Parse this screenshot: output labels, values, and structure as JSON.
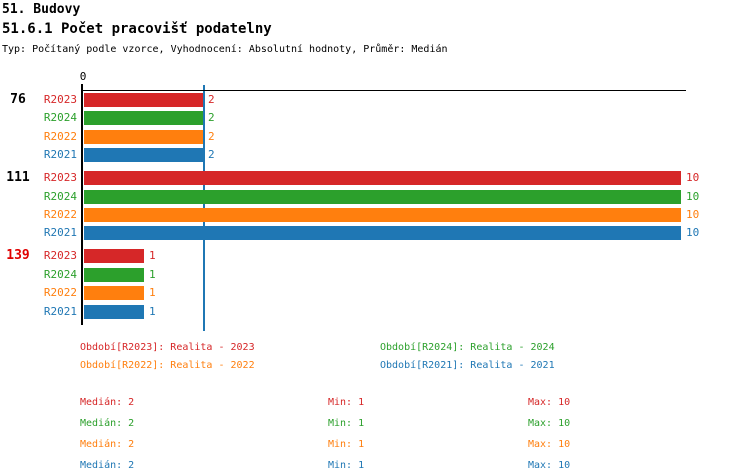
{
  "header": {
    "section_title": "51. Budovy",
    "chart_title": "51.6.1 Počet pracovišť podatelny",
    "subtitle": "Typ: Počítaný podle vzorce, Vyhodnocení: Absolutní hodnoty, Průměr: Medián"
  },
  "colors": {
    "R2023": "#d62728",
    "R2024": "#2ca02c",
    "R2022": "#ff7f0e",
    "R2021": "#1f77b4",
    "highlight_group_label": "#e00000",
    "normal_group_label": "#000000",
    "axis": "#000000",
    "median_line": "#1f77b4"
  },
  "chart_data": {
    "type": "bar",
    "orientation": "horizontal",
    "title": "51.6.1 Počet pracovišť podatelny",
    "x_axis": {
      "zero_label": "0",
      "min": 0,
      "max": 10,
      "grid": false
    },
    "median_reference_value": 2,
    "series_order": [
      "R2023",
      "R2024",
      "R2022",
      "R2021"
    ],
    "groups": [
      {
        "label": "76",
        "highlighted": false,
        "values": [
          2,
          2,
          2,
          2
        ]
      },
      {
        "label": "111",
        "highlighted": false,
        "values": [
          10,
          10,
          10,
          10
        ]
      },
      {
        "label": "139",
        "highlighted": true,
        "values": [
          1,
          1,
          1,
          1
        ]
      }
    ]
  },
  "legend": {
    "items": [
      {
        "series": "R2023",
        "label": "Období[R2023]: Realita - 2023",
        "color": "#d62728"
      },
      {
        "series": "R2024",
        "label": "Období[R2024]: Realita - 2024",
        "color": "#2ca02c"
      },
      {
        "series": "R2022",
        "label": "Období[R2022]: Realita - 2022",
        "color": "#ff7f0e"
      },
      {
        "series": "R2021",
        "label": "Období[R2021]: Realita - 2021",
        "color": "#1f77b4"
      }
    ]
  },
  "stats": {
    "rows": [
      {
        "series": "R2023",
        "color": "#d62728",
        "median": "Medián: 2",
        "min": "Min: 1",
        "max": "Max: 10"
      },
      {
        "series": "R2024",
        "color": "#2ca02c",
        "median": "Medián: 2",
        "min": "Min: 1",
        "max": "Max: 10"
      },
      {
        "series": "R2022",
        "color": "#ff7f0e",
        "median": "Medián: 2",
        "min": "Min: 1",
        "max": "Max: 10"
      },
      {
        "series": "R2021",
        "color": "#1f77b4",
        "median": "Medián: 2",
        "min": "Min: 1",
        "max": "Max: 10"
      }
    ]
  }
}
